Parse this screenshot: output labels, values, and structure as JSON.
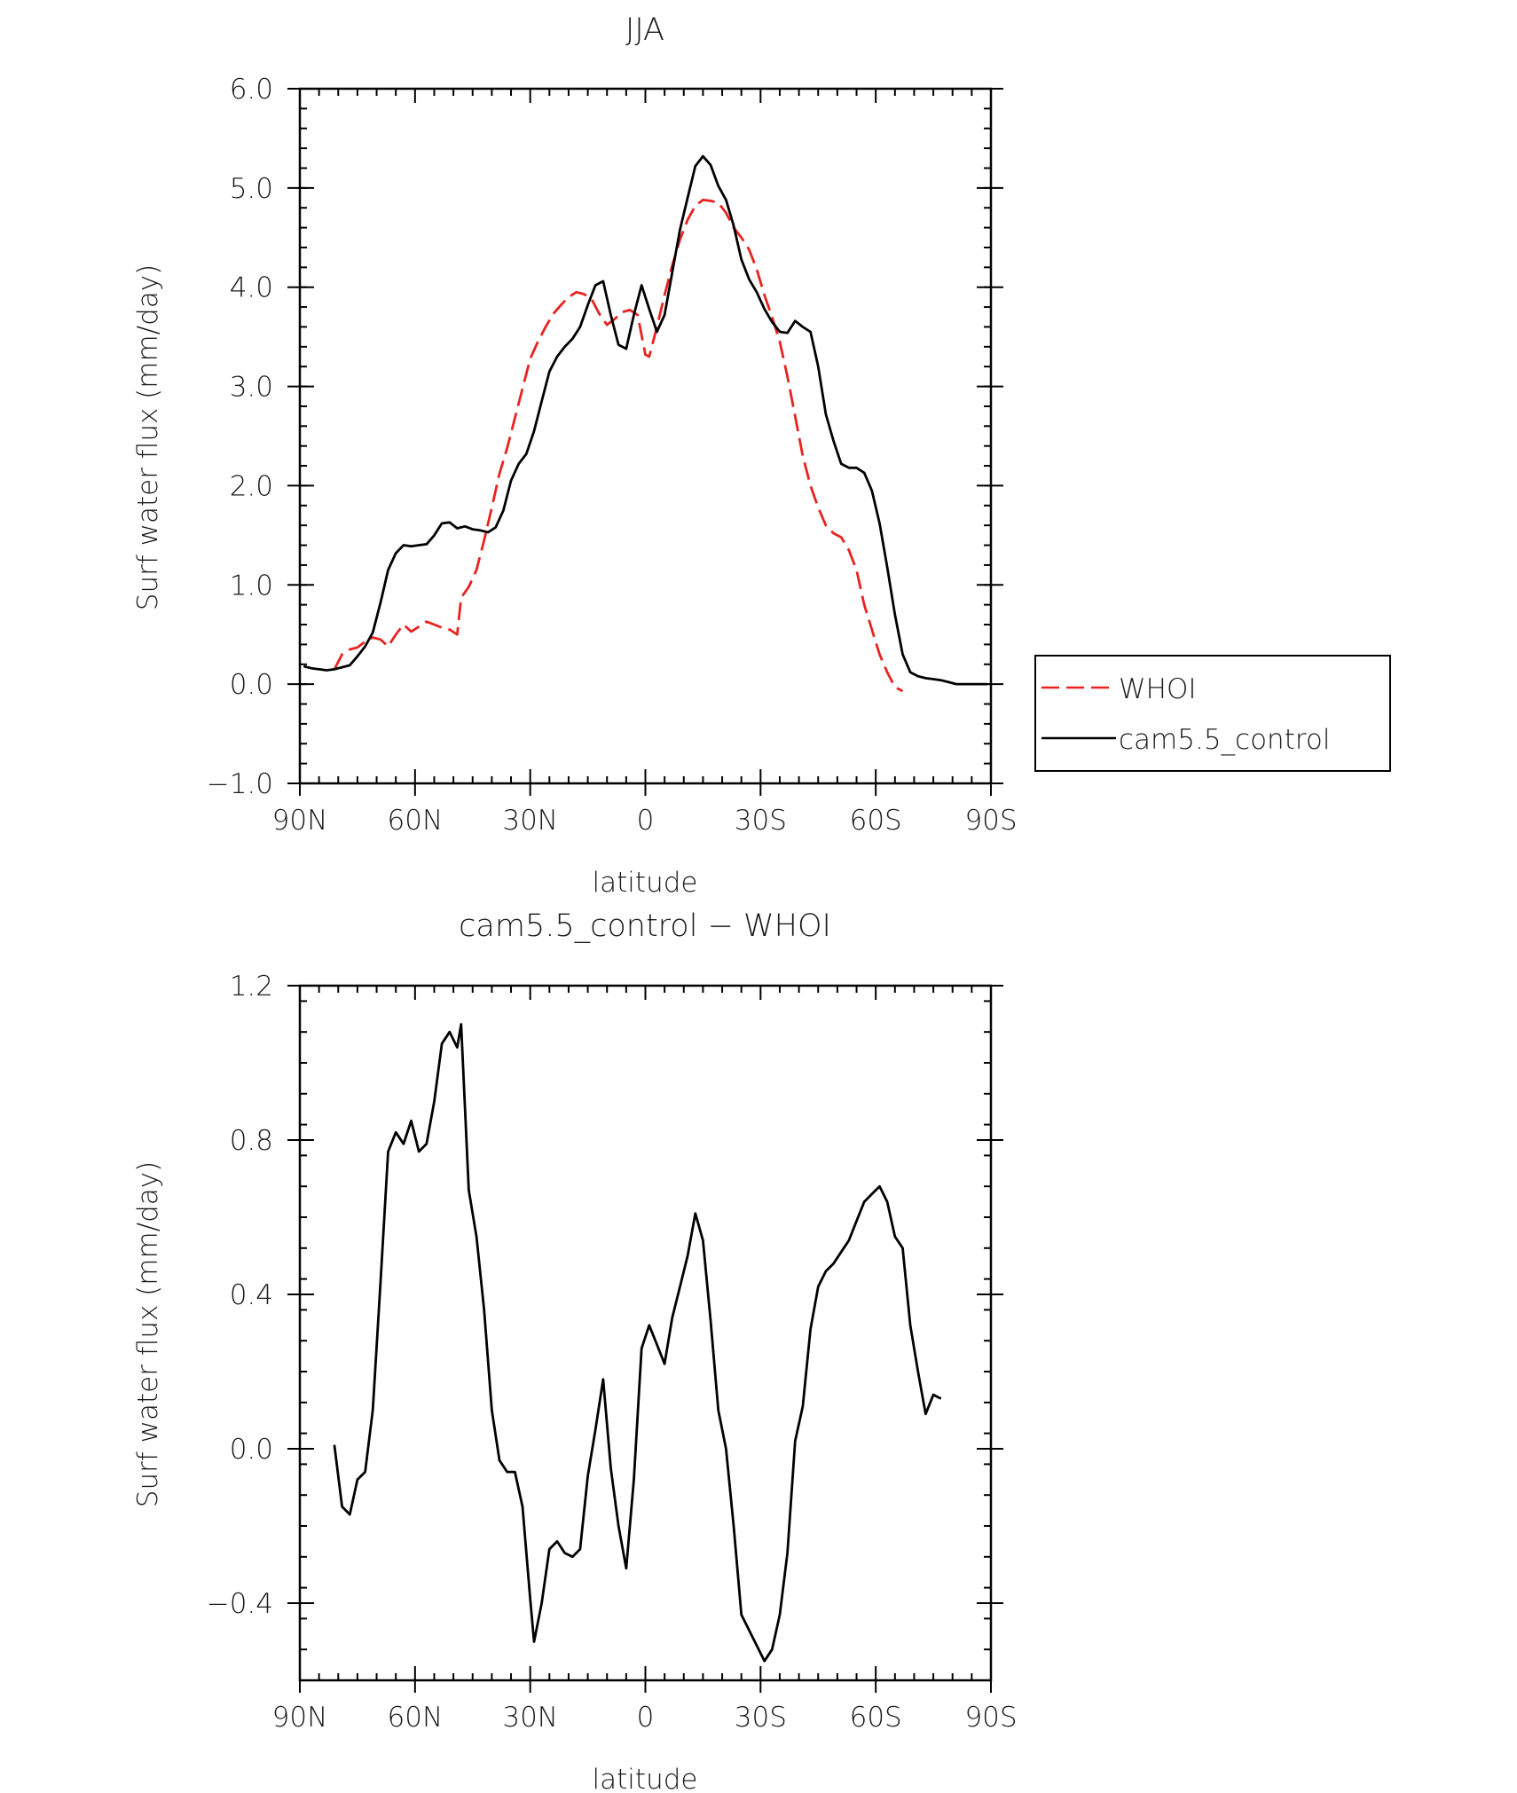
{
  "chart_data": [
    {
      "type": "line",
      "title": "JJA",
      "xlabel": "latitude",
      "ylabel": "Surf water flux (mm/day)",
      "xlim": [
        90,
        -90
      ],
      "ylim": [
        -1.0,
        6.0
      ],
      "x_tick_values": [
        90,
        60,
        30,
        0,
        -30,
        -60,
        -90
      ],
      "x_tick_labels": [
        "90N",
        "60N",
        "30N",
        "0",
        "30S",
        "60S",
        "90S"
      ],
      "y_tick_values": [
        -1.0,
        0.0,
        1.0,
        2.0,
        3.0,
        4.0,
        5.0,
        6.0
      ],
      "y_tick_labels": [
        "−1.0",
        "0.0",
        "1.0",
        "2.0",
        "3.0",
        "4.0",
        "5.0",
        "6.0"
      ],
      "legend_position": "right",
      "series": [
        {
          "name": "WHOI",
          "color": "#e8231f",
          "dash": "dashed",
          "points": [
            [
              81,
              0.15
            ],
            [
              79,
              0.3
            ],
            [
              77,
              0.35
            ],
            [
              75,
              0.37
            ],
            [
              73,
              0.43
            ],
            [
              71,
              0.47
            ],
            [
              69,
              0.45
            ],
            [
              67,
              0.38
            ],
            [
              65,
              0.5
            ],
            [
              63,
              0.6
            ],
            [
              61,
              0.53
            ],
            [
              59,
              0.58
            ],
            [
              57,
              0.63
            ],
            [
              55,
              0.6
            ],
            [
              53,
              0.57
            ],
            [
              51,
              0.55
            ],
            [
              49,
              0.5
            ],
            [
              48,
              0.87
            ],
            [
              46,
              0.98
            ],
            [
              44,
              1.15
            ],
            [
              42,
              1.45
            ],
            [
              40,
              1.78
            ],
            [
              38,
              2.12
            ],
            [
              36,
              2.38
            ],
            [
              34,
              2.68
            ],
            [
              32,
              2.98
            ],
            [
              30,
              3.28
            ],
            [
              28,
              3.45
            ],
            [
              26,
              3.6
            ],
            [
              24,
              3.73
            ],
            [
              22,
              3.82
            ],
            [
              20,
              3.9
            ],
            [
              18,
              3.95
            ],
            [
              16,
              3.93
            ],
            [
              14,
              3.88
            ],
            [
              12,
              3.73
            ],
            [
              10,
              3.62
            ],
            [
              8,
              3.68
            ],
            [
              6,
              3.75
            ],
            [
              4,
              3.77
            ],
            [
              2,
              3.72
            ],
            [
              0,
              3.32
            ],
            [
              -1,
              3.3
            ],
            [
              -3,
              3.6
            ],
            [
              -5,
              3.92
            ],
            [
              -7,
              4.22
            ],
            [
              -9,
              4.48
            ],
            [
              -11,
              4.68
            ],
            [
              -13,
              4.82
            ],
            [
              -15,
              4.88
            ],
            [
              -17,
              4.87
            ],
            [
              -19,
              4.85
            ],
            [
              -21,
              4.75
            ],
            [
              -23,
              4.6
            ],
            [
              -25,
              4.5
            ],
            [
              -27,
              4.38
            ],
            [
              -29,
              4.18
            ],
            [
              -31,
              3.92
            ],
            [
              -33,
              3.7
            ],
            [
              -35,
              3.45
            ],
            [
              -37,
              3.1
            ],
            [
              -39,
              2.7
            ],
            [
              -41,
              2.3
            ],
            [
              -43,
              2.0
            ],
            [
              -45,
              1.78
            ],
            [
              -47,
              1.6
            ],
            [
              -49,
              1.52
            ],
            [
              -51,
              1.48
            ],
            [
              -53,
              1.35
            ],
            [
              -55,
              1.15
            ],
            [
              -57,
              0.8
            ],
            [
              -59,
              0.55
            ],
            [
              -61,
              0.3
            ],
            [
              -63,
              0.12
            ],
            [
              -65,
              -0.03
            ],
            [
              -67,
              -0.07
            ]
          ]
        },
        {
          "name": "cam5.5_control",
          "color": "#000000",
          "dash": "solid",
          "points": [
            [
              89,
              0.18
            ],
            [
              87,
              0.16
            ],
            [
              85,
              0.15
            ],
            [
              83,
              0.14
            ],
            [
              81,
              0.15
            ],
            [
              79,
              0.17
            ],
            [
              77,
              0.19
            ],
            [
              75,
              0.28
            ],
            [
              73,
              0.38
            ],
            [
              71,
              0.52
            ],
            [
              69,
              0.82
            ],
            [
              67,
              1.15
            ],
            [
              65,
              1.32
            ],
            [
              63,
              1.4
            ],
            [
              61,
              1.39
            ],
            [
              59,
              1.4
            ],
            [
              57,
              1.41
            ],
            [
              55,
              1.5
            ],
            [
              53,
              1.62
            ],
            [
              51,
              1.63
            ],
            [
              49,
              1.57
            ],
            [
              47,
              1.59
            ],
            [
              45,
              1.56
            ],
            [
              43,
              1.55
            ],
            [
              41,
              1.53
            ],
            [
              39,
              1.58
            ],
            [
              37,
              1.75
            ],
            [
              35,
              2.05
            ],
            [
              33,
              2.22
            ],
            [
              31,
              2.32
            ],
            [
              29,
              2.55
            ],
            [
              27,
              2.85
            ],
            [
              25,
              3.15
            ],
            [
              23,
              3.3
            ],
            [
              21,
              3.4
            ],
            [
              19,
              3.48
            ],
            [
              17,
              3.6
            ],
            [
              15,
              3.82
            ],
            [
              13,
              4.02
            ],
            [
              11,
              4.06
            ],
            [
              9,
              3.72
            ],
            [
              7,
              3.42
            ],
            [
              5,
              3.38
            ],
            [
              3,
              3.72
            ],
            [
              1,
              4.02
            ],
            [
              -1,
              3.78
            ],
            [
              -3,
              3.55
            ],
            [
              -5,
              3.72
            ],
            [
              -7,
              4.15
            ],
            [
              -9,
              4.58
            ],
            [
              -11,
              4.9
            ],
            [
              -13,
              5.22
            ],
            [
              -15,
              5.32
            ],
            [
              -17,
              5.23
            ],
            [
              -19,
              5.02
            ],
            [
              -21,
              4.88
            ],
            [
              -23,
              4.62
            ],
            [
              -25,
              4.28
            ],
            [
              -27,
              4.08
            ],
            [
              -29,
              3.95
            ],
            [
              -31,
              3.78
            ],
            [
              -33,
              3.65
            ],
            [
              -35,
              3.55
            ],
            [
              -37,
              3.54
            ],
            [
              -39,
              3.66
            ],
            [
              -41,
              3.6
            ],
            [
              -43,
              3.55
            ],
            [
              -45,
              3.2
            ],
            [
              -47,
              2.72
            ],
            [
              -49,
              2.45
            ],
            [
              -51,
              2.22
            ],
            [
              -53,
              2.18
            ],
            [
              -55,
              2.18
            ],
            [
              -57,
              2.13
            ],
            [
              -59,
              1.95
            ],
            [
              -61,
              1.62
            ],
            [
              -63,
              1.18
            ],
            [
              -65,
              0.7
            ],
            [
              -67,
              0.3
            ],
            [
              -69,
              0.12
            ],
            [
              -71,
              0.08
            ],
            [
              -73,
              0.06
            ],
            [
              -75,
              0.05
            ],
            [
              -77,
              0.04
            ],
            [
              -79,
              0.02
            ],
            [
              -81,
              0.0
            ],
            [
              -83,
              0.0
            ],
            [
              -85,
              0.0
            ],
            [
              -87,
              0.0
            ],
            [
              -89,
              0.0
            ]
          ]
        }
      ]
    },
    {
      "type": "line",
      "title": "cam5.5_control − WHOI",
      "xlabel": "latitude",
      "ylabel": "Surf water flux (mm/day)",
      "xlim": [
        90,
        -90
      ],
      "ylim": [
        -0.6,
        1.2
      ],
      "x_tick_values": [
        90,
        60,
        30,
        0,
        -30,
        -60,
        -90
      ],
      "x_tick_labels": [
        "90N",
        "60N",
        "30N",
        "0",
        "30S",
        "60S",
        "90S"
      ],
      "y_tick_values": [
        -0.4,
        0.0,
        0.4,
        0.8,
        1.2
      ],
      "y_tick_labels": [
        "−0.4",
        "0.0",
        "0.4",
        "0.8",
        "1.2"
      ],
      "series": [
        {
          "color": "#000000",
          "dash": "solid",
          "points": [
            [
              81,
              0.01
            ],
            [
              79,
              -0.15
            ],
            [
              77,
              -0.17
            ],
            [
              75,
              -0.08
            ],
            [
              73,
              -0.06
            ],
            [
              71,
              0.1
            ],
            [
              69,
              0.43
            ],
            [
              67,
              0.77
            ],
            [
              65,
              0.82
            ],
            [
              63,
              0.79
            ],
            [
              61,
              0.85
            ],
            [
              59,
              0.77
            ],
            [
              57,
              0.79
            ],
            [
              55,
              0.9
            ],
            [
              53,
              1.05
            ],
            [
              51,
              1.08
            ],
            [
              49,
              1.04
            ],
            [
              48,
              1.1
            ],
            [
              46,
              0.67
            ],
            [
              44,
              0.55
            ],
            [
              42,
              0.36
            ],
            [
              40,
              0.1
            ],
            [
              38,
              -0.03
            ],
            [
              36,
              -0.06
            ],
            [
              34,
              -0.06
            ],
            [
              32,
              -0.15
            ],
            [
              30,
              -0.39
            ],
            [
              29,
              -0.5
            ],
            [
              27,
              -0.4
            ],
            [
              25,
              -0.26
            ],
            [
              23,
              -0.24
            ],
            [
              21,
              -0.27
            ],
            [
              19,
              -0.28
            ],
            [
              17,
              -0.26
            ],
            [
              15,
              -0.07
            ],
            [
              13,
              0.05
            ],
            [
              11,
              0.18
            ],
            [
              9,
              -0.05
            ],
            [
              7,
              -0.2
            ],
            [
              5,
              -0.31
            ],
            [
              3,
              -0.08
            ],
            [
              1,
              0.26
            ],
            [
              -1,
              0.32
            ],
            [
              -3,
              0.27
            ],
            [
              -5,
              0.22
            ],
            [
              -7,
              0.34
            ],
            [
              -9,
              0.42
            ],
            [
              -11,
              0.5
            ],
            [
              -13,
              0.61
            ],
            [
              -15,
              0.54
            ],
            [
              -17,
              0.33
            ],
            [
              -19,
              0.1
            ],
            [
              -21,
              0.0
            ],
            [
              -23,
              -0.2
            ],
            [
              -25,
              -0.43
            ],
            [
              -27,
              -0.47
            ],
            [
              -29,
              -0.51
            ],
            [
              -31,
              -0.55
            ],
            [
              -33,
              -0.52
            ],
            [
              -35,
              -0.43
            ],
            [
              -37,
              -0.27
            ],
            [
              -39,
              0.02
            ],
            [
              -41,
              0.11
            ],
            [
              -43,
              0.31
            ],
            [
              -45,
              0.42
            ],
            [
              -47,
              0.46
            ],
            [
              -49,
              0.48
            ],
            [
              -51,
              0.51
            ],
            [
              -53,
              0.54
            ],
            [
              -55,
              0.59
            ],
            [
              -57,
              0.64
            ],
            [
              -59,
              0.66
            ],
            [
              -61,
              0.68
            ],
            [
              -63,
              0.64
            ],
            [
              -65,
              0.55
            ],
            [
              -67,
              0.52
            ],
            [
              -69,
              0.32
            ],
            [
              -71,
              0.2
            ],
            [
              -73,
              0.09
            ],
            [
              -75,
              0.14
            ],
            [
              -77,
              0.13
            ]
          ]
        }
      ]
    }
  ]
}
